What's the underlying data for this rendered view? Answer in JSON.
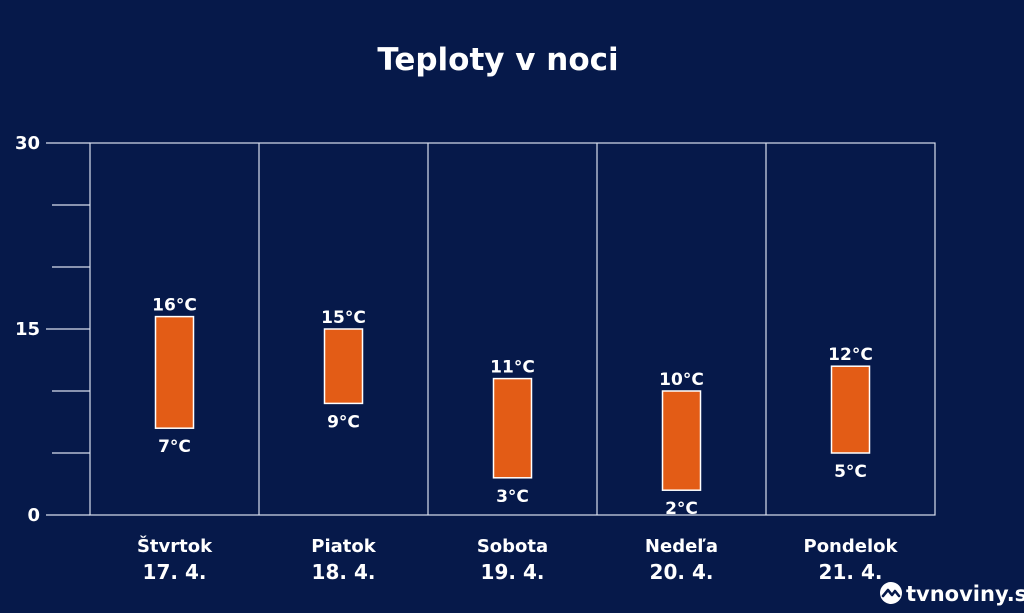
{
  "chart_data": {
    "type": "bar",
    "title": "Teploty v noci",
    "xlabel": "",
    "ylabel": "",
    "ylim": [
      0,
      30
    ],
    "y_ticks": [
      0,
      15,
      30
    ],
    "y_tick_labels": [
      "0",
      "15",
      "30"
    ],
    "grid": false,
    "categories": [
      "Štvrtok",
      "Piatok",
      "Sobota",
      "Nedeľa",
      "Pondelok"
    ],
    "dates": [
      "17. 4.",
      "18. 4.",
      "19. 4.",
      "20. 4.",
      "21. 4."
    ],
    "series": [
      {
        "name": "",
        "values": [
          16,
          15,
          11,
          10,
          12
        ]
      },
      {
        "name": "",
        "values": [
          7,
          9,
          3,
          2,
          5
        ]
      }
    ],
    "max_labels": [
      "16°C",
      "15°C",
      "11°C",
      "10°C",
      "12°C"
    ],
    "min_labels": [
      "7°C",
      "9°C",
      "3°C",
      "2°C",
      "5°C"
    ],
    "bar_color": "#e35c16",
    "background_color": "#06194a"
  },
  "brand": {
    "name": "tvnoviny.sk",
    "icon": "tvnoviny-logo-icon"
  }
}
